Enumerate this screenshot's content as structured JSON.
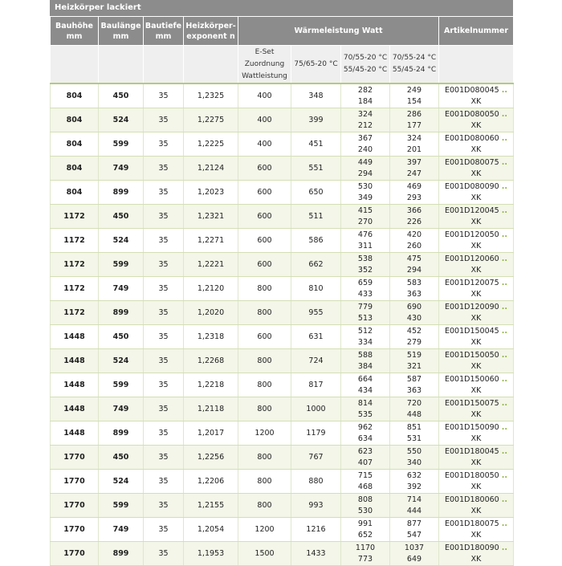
{
  "title": "Heizkörper lackiert",
  "headers": {
    "h": [
      "Bauhöhe",
      "mm"
    ],
    "l": [
      "Baulänge",
      "mm"
    ],
    "t": [
      "Bautiefe",
      "mm"
    ],
    "n": [
      "Heizkörper-",
      "exponent n"
    ],
    "w": "Wärmeleistung Watt",
    "a": "Artikelnummer"
  },
  "subheaders": {
    "eset": [
      "E-Set",
      "Zuordnung",
      "Wattleistung"
    ],
    "c1": "75/65-20 °C",
    "c2": [
      "70/55-20 °C",
      "55/45-20 °C"
    ],
    "c3": [
      "70/55-24 °C",
      "55/45-24 °C"
    ]
  },
  "article_dots": "..",
  "rows": [
    {
      "h": "804",
      "l": "450",
      "t": "35",
      "n": "1,2325",
      "e": "400",
      "w1": "348",
      "w2": [
        "282",
        "184"
      ],
      "w3": [
        "249",
        "154"
      ],
      "art": "E001D080045",
      "suf": "XK"
    },
    {
      "h": "804",
      "l": "524",
      "t": "35",
      "n": "1,2275",
      "e": "400",
      "w1": "399",
      "w2": [
        "324",
        "212"
      ],
      "w3": [
        "286",
        "177"
      ],
      "art": "E001D080050",
      "suf": "XK"
    },
    {
      "h": "804",
      "l": "599",
      "t": "35",
      "n": "1,2225",
      "e": "400",
      "w1": "451",
      "w2": [
        "367",
        "240"
      ],
      "w3": [
        "324",
        "201"
      ],
      "art": "E001D080060",
      "suf": "XK"
    },
    {
      "h": "804",
      "l": "749",
      "t": "35",
      "n": "1,2124",
      "e": "600",
      "w1": "551",
      "w2": [
        "449",
        "294"
      ],
      "w3": [
        "397",
        "247"
      ],
      "art": "E001D080075",
      "suf": "XK"
    },
    {
      "h": "804",
      "l": "899",
      "t": "35",
      "n": "1,2023",
      "e": "600",
      "w1": "650",
      "w2": [
        "530",
        "349"
      ],
      "w3": [
        "469",
        "293"
      ],
      "art": "E001D080090",
      "suf": "XK"
    },
    {
      "h": "1172",
      "l": "450",
      "t": "35",
      "n": "1,2321",
      "e": "600",
      "w1": "511",
      "w2": [
        "415",
        "270"
      ],
      "w3": [
        "366",
        "226"
      ],
      "art": "E001D120045",
      "suf": "XK"
    },
    {
      "h": "1172",
      "l": "524",
      "t": "35",
      "n": "1,2271",
      "e": "600",
      "w1": "586",
      "w2": [
        "476",
        "311"
      ],
      "w3": [
        "420",
        "260"
      ],
      "art": "E001D120050",
      "suf": "XK"
    },
    {
      "h": "1172",
      "l": "599",
      "t": "35",
      "n": "1,2221",
      "e": "600",
      "w1": "662",
      "w2": [
        "538",
        "352"
      ],
      "w3": [
        "475",
        "294"
      ],
      "art": "E001D120060",
      "suf": "XK"
    },
    {
      "h": "1172",
      "l": "749",
      "t": "35",
      "n": "1,2120",
      "e": "800",
      "w1": "810",
      "w2": [
        "659",
        "433"
      ],
      "w3": [
        "583",
        "363"
      ],
      "art": "E001D120075",
      "suf": "XK"
    },
    {
      "h": "1172",
      "l": "899",
      "t": "35",
      "n": "1,2020",
      "e": "800",
      "w1": "955",
      "w2": [
        "779",
        "513"
      ],
      "w3": [
        "690",
        "430"
      ],
      "art": "E001D120090",
      "suf": "XK"
    },
    {
      "h": "1448",
      "l": "450",
      "t": "35",
      "n": "1,2318",
      "e": "600",
      "w1": "631",
      "w2": [
        "512",
        "334"
      ],
      "w3": [
        "452",
        "279"
      ],
      "art": "E001D150045",
      "suf": "XK"
    },
    {
      "h": "1448",
      "l": "524",
      "t": "35",
      "n": "1,2268",
      "e": "800",
      "w1": "724",
      "w2": [
        "588",
        "384"
      ],
      "w3": [
        "519",
        "321"
      ],
      "art": "E001D150050",
      "suf": "XK"
    },
    {
      "h": "1448",
      "l": "599",
      "t": "35",
      "n": "1,2218",
      "e": "800",
      "w1": "817",
      "w2": [
        "664",
        "434"
      ],
      "w3": [
        "587",
        "363"
      ],
      "art": "E001D150060",
      "suf": "XK"
    },
    {
      "h": "1448",
      "l": "749",
      "t": "35",
      "n": "1,2118",
      "e": "800",
      "w1": "1000",
      "w2": [
        "814",
        "535"
      ],
      "w3": [
        "720",
        "448"
      ],
      "art": "E001D150075",
      "suf": "XK"
    },
    {
      "h": "1448",
      "l": "899",
      "t": "35",
      "n": "1,2017",
      "e": "1200",
      "w1": "1179",
      "w2": [
        "962",
        "634"
      ],
      "w3": [
        "851",
        "531"
      ],
      "art": "E001D150090",
      "suf": "XK"
    },
    {
      "h": "1770",
      "l": "450",
      "t": "35",
      "n": "1,2256",
      "e": "800",
      "w1": "767",
      "w2": [
        "623",
        "407"
      ],
      "w3": [
        "550",
        "340"
      ],
      "art": "E001D180045",
      "suf": "XK"
    },
    {
      "h": "1770",
      "l": "524",
      "t": "35",
      "n": "1,2206",
      "e": "800",
      "w1": "880",
      "w2": [
        "715",
        "468"
      ],
      "w3": [
        "632",
        "392"
      ],
      "art": "E001D180050",
      "suf": "XK"
    },
    {
      "h": "1770",
      "l": "599",
      "t": "35",
      "n": "1,2155",
      "e": "800",
      "w1": "993",
      "w2": [
        "808",
        "530"
      ],
      "w3": [
        "714",
        "444"
      ],
      "art": "E001D180060",
      "suf": "XK"
    },
    {
      "h": "1770",
      "l": "749",
      "t": "35",
      "n": "1,2054",
      "e": "1200",
      "w1": "1216",
      "w2": [
        "991",
        "652"
      ],
      "w3": [
        "877",
        "547"
      ],
      "art": "E001D180075",
      "suf": "XK"
    },
    {
      "h": "1770",
      "l": "899",
      "t": "35",
      "n": "1,1953",
      "e": "1500",
      "w1": "1433",
      "w2": [
        "1170",
        "773"
      ],
      "w3": [
        "1037",
        "649"
      ],
      "art": "E001D180090",
      "suf": "XK"
    }
  ]
}
